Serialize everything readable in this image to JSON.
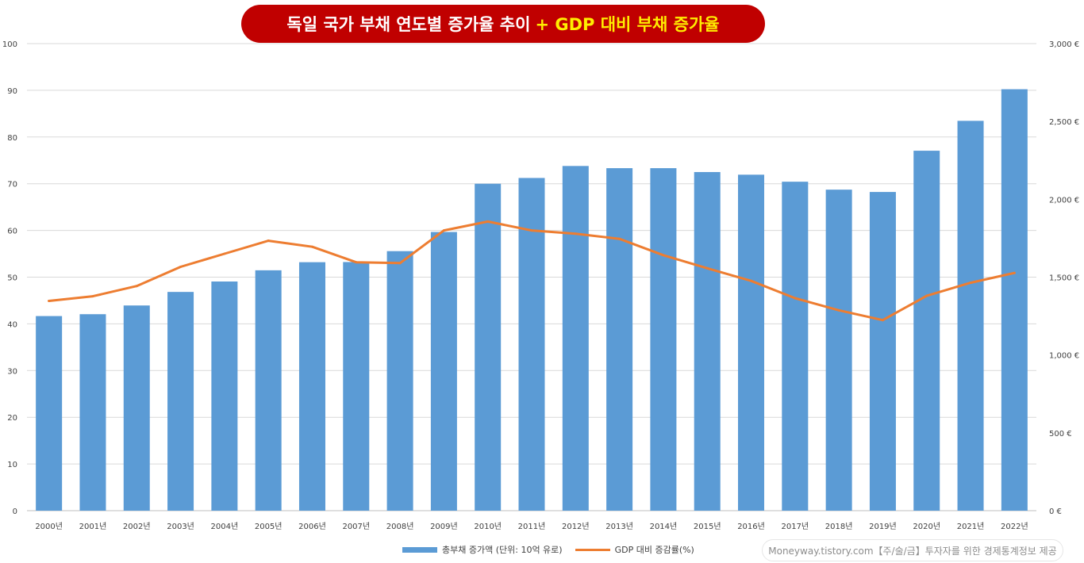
{
  "chart_data": {
    "type": "bar+line",
    "title_main": "독일 국가 부채 연도별 증가율 추이",
    "title_highlight": "+ GDP 대비 부채 증가율",
    "categories": [
      "2000년",
      "2001년",
      "2002년",
      "2003년",
      "2004년",
      "2005년",
      "2006년",
      "2007년",
      "2008년",
      "2009년",
      "2010년",
      "2011년",
      "2012년",
      "2013년",
      "2014년",
      "2015년",
      "2016년",
      "2017년",
      "2018년",
      "2019년",
      "2020년",
      "2021년",
      "2022년"
    ],
    "series": [
      {
        "name": "총부채 증가액 (단위: 10억 유로)",
        "kind": "bar",
        "axis": "right",
        "values": [
          1250,
          1262,
          1318,
          1405,
          1472,
          1544,
          1596,
          1597,
          1667,
          1790,
          2100,
          2137,
          2214,
          2200,
          2200,
          2175,
          2158,
          2113,
          2062,
          2047,
          2312,
          2504,
          2707
        ]
      },
      {
        "name": "GDP 대비 증감률(%)",
        "kind": "line",
        "axis": "left",
        "values": [
          44.9,
          45.9,
          48.1,
          52.2,
          55.0,
          57.8,
          56.5,
          53.2,
          53.0,
          60.0,
          61.9,
          60.0,
          59.3,
          58.2,
          54.7,
          51.9,
          49.2,
          45.5,
          42.9,
          40.8,
          46.0,
          48.8,
          50.9
        ]
      }
    ],
    "y_left": {
      "min": 0,
      "max": 100,
      "ticks": [
        "0",
        "10",
        "20",
        "30",
        "40",
        "50",
        "60",
        "70",
        "80",
        "90",
        "100"
      ]
    },
    "y_right": {
      "min": 0,
      "max": 3000,
      "ticks": [
        "0 €",
        "500 €",
        "1,000 €",
        "1,500 €",
        "2,000 €",
        "2,500 €",
        "3,000 €"
      ]
    },
    "grid": true,
    "legend_position": "bottom"
  },
  "colors": {
    "bar": "#5b9bd5",
    "line": "#ed7d31",
    "title_bg": "#c00000",
    "title_highlight": "#ffee00"
  },
  "watermark": "Moneyway.tistory.com【주/술/금】투자자를 위한 경제통계정보 제공"
}
